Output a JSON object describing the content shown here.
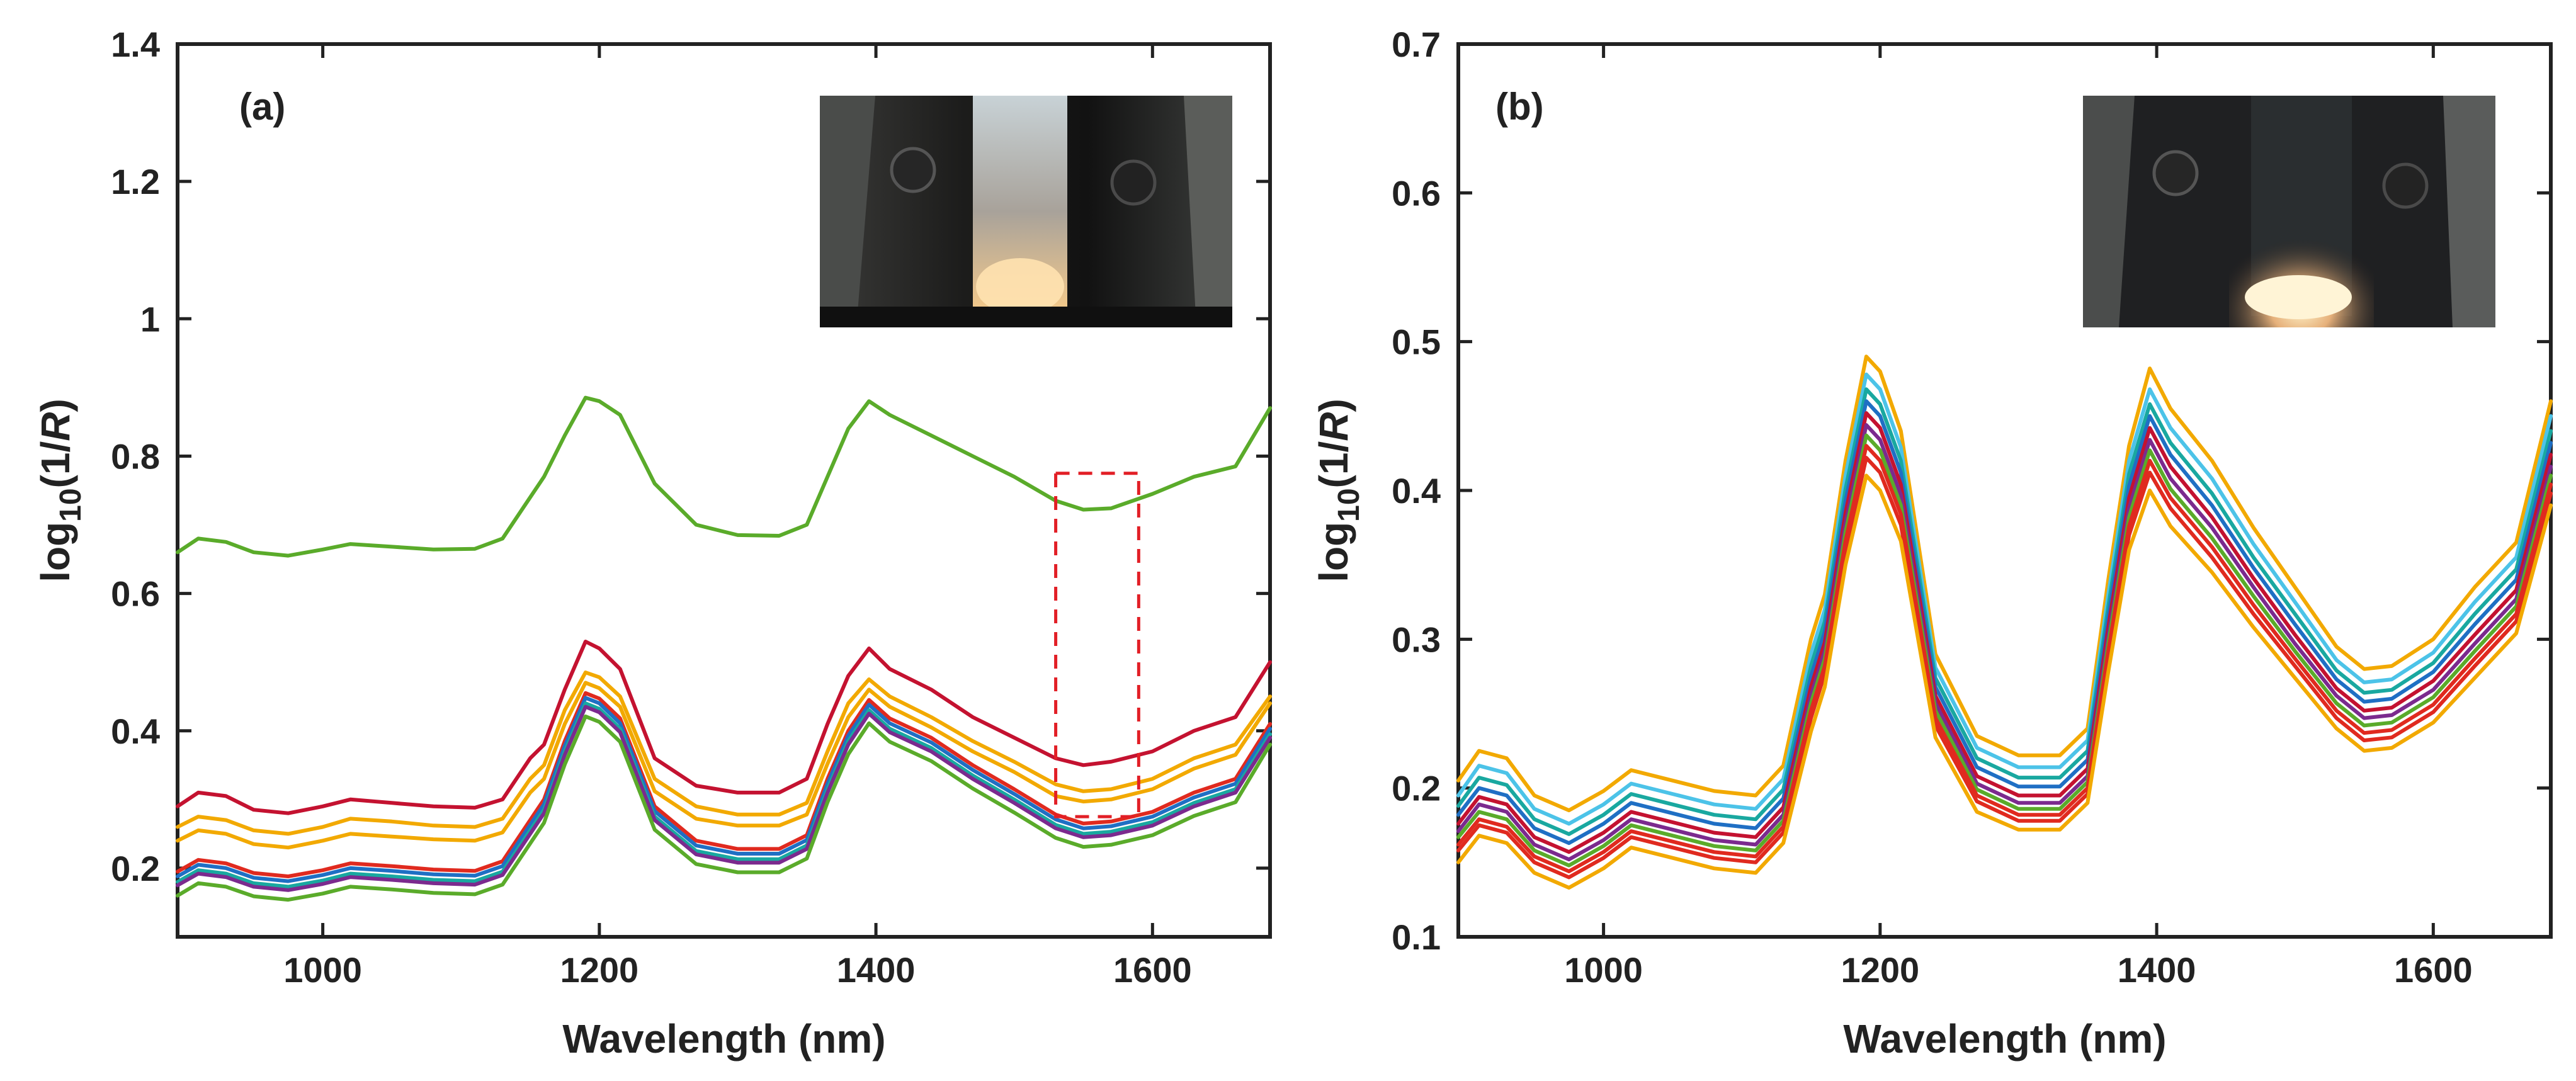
{
  "colors": {
    "green": "#5aab2a",
    "crimson": "#c41230",
    "orange": "#f2a900",
    "red": "#e02a1f",
    "teal": "#19a8a0",
    "blue": "#1f6fc4",
    "purple": "#7b2a8e",
    "cyan": "#4cc3e8",
    "dashed_box": "#e21f26"
  },
  "chart_data": [
    {
      "type": "line",
      "panel_label": "(a)",
      "xlabel": "Wavelength (nm)",
      "ylabel_base": "log",
      "ylabel_sub": "10",
      "ylabel_rest": "(1/",
      "ylabel_italic": "R",
      "ylabel_close": ")",
      "xlim": [
        895,
        1685
      ],
      "ylim": [
        0.1,
        1.4
      ],
      "xticks": [
        1000,
        1200,
        1400,
        1600
      ],
      "xtick_labels": [
        "1000",
        "1200",
        "1400",
        "1600"
      ],
      "yticks": [
        0.2,
        0.4,
        0.6,
        0.8,
        1.0,
        1.2,
        1.4
      ],
      "ytick_labels": [
        "0.2",
        "0.4",
        "0.6",
        "0.8",
        "1",
        "1.2",
        "1.4"
      ],
      "inset": "photo of sample in holder",
      "highlight_box": {
        "x": [
          1530,
          1590
        ],
        "y": [
          0.275,
          0.775
        ],
        "style": "dashed"
      },
      "x": [
        895,
        910,
        930,
        950,
        975,
        1000,
        1020,
        1050,
        1080,
        1110,
        1130,
        1150,
        1160,
        1175,
        1190,
        1200,
        1215,
        1240,
        1270,
        1300,
        1330,
        1350,
        1365,
        1380,
        1395,
        1410,
        1440,
        1470,
        1500,
        1530,
        1550,
        1570,
        1600,
        1630,
        1660,
        1685
      ],
      "series": [
        {
          "name": "green-upper",
          "color": "green",
          "values": [
            0.66,
            0.68,
            0.675,
            0.66,
            0.655,
            0.664,
            0.672,
            0.668,
            0.664,
            0.665,
            0.68,
            0.74,
            0.77,
            0.83,
            0.885,
            0.88,
            0.86,
            0.76,
            0.7,
            0.685,
            0.684,
            0.7,
            0.77,
            0.84,
            0.88,
            0.86,
            0.83,
            0.8,
            0.77,
            0.735,
            0.722,
            0.724,
            0.745,
            0.77,
            0.785,
            0.87
          ]
        },
        {
          "name": "crimson",
          "color": "crimson",
          "values": [
            0.29,
            0.31,
            0.305,
            0.285,
            0.28,
            0.29,
            0.3,
            0.295,
            0.29,
            0.288,
            0.3,
            0.36,
            0.38,
            0.46,
            0.53,
            0.52,
            0.49,
            0.36,
            0.32,
            0.31,
            0.31,
            0.33,
            0.41,
            0.48,
            0.52,
            0.49,
            0.46,
            0.42,
            0.39,
            0.36,
            0.35,
            0.355,
            0.37,
            0.4,
            0.42,
            0.5
          ]
        },
        {
          "name": "orange-1",
          "color": "orange",
          "values": [
            0.26,
            0.275,
            0.27,
            0.255,
            0.25,
            0.26,
            0.272,
            0.268,
            0.262,
            0.26,
            0.272,
            0.33,
            0.35,
            0.43,
            0.485,
            0.478,
            0.45,
            0.33,
            0.29,
            0.278,
            0.278,
            0.295,
            0.37,
            0.44,
            0.475,
            0.45,
            0.42,
            0.385,
            0.355,
            0.322,
            0.312,
            0.315,
            0.33,
            0.36,
            0.38,
            0.45
          ]
        },
        {
          "name": "orange-2",
          "color": "orange",
          "values": [
            0.24,
            0.255,
            0.25,
            0.235,
            0.23,
            0.24,
            0.25,
            0.246,
            0.242,
            0.24,
            0.252,
            0.31,
            0.33,
            0.41,
            0.47,
            0.462,
            0.435,
            0.312,
            0.272,
            0.262,
            0.262,
            0.278,
            0.352,
            0.42,
            0.46,
            0.435,
            0.405,
            0.37,
            0.34,
            0.305,
            0.297,
            0.3,
            0.315,
            0.345,
            0.365,
            0.44
          ]
        },
        {
          "name": "red-1",
          "color": "red",
          "values": [
            0.195,
            0.212,
            0.207,
            0.193,
            0.188,
            0.197,
            0.207,
            0.203,
            0.198,
            0.196,
            0.21,
            0.27,
            0.3,
            0.385,
            0.455,
            0.447,
            0.418,
            0.29,
            0.24,
            0.228,
            0.228,
            0.248,
            0.33,
            0.4,
            0.445,
            0.418,
            0.39,
            0.35,
            0.315,
            0.278,
            0.265,
            0.268,
            0.282,
            0.31,
            0.33,
            0.41
          ]
        },
        {
          "name": "blue-1",
          "color": "blue",
          "values": [
            0.188,
            0.205,
            0.2,
            0.186,
            0.181,
            0.19,
            0.2,
            0.196,
            0.191,
            0.189,
            0.203,
            0.263,
            0.293,
            0.378,
            0.448,
            0.44,
            0.411,
            0.283,
            0.233,
            0.221,
            0.221,
            0.241,
            0.323,
            0.393,
            0.438,
            0.411,
            0.383,
            0.343,
            0.308,
            0.271,
            0.258,
            0.261,
            0.275,
            0.303,
            0.323,
            0.403
          ]
        },
        {
          "name": "teal-1",
          "color": "teal",
          "values": [
            0.18,
            0.197,
            0.192,
            0.178,
            0.173,
            0.182,
            0.192,
            0.188,
            0.183,
            0.181,
            0.195,
            0.255,
            0.285,
            0.37,
            0.44,
            0.432,
            0.403,
            0.275,
            0.225,
            0.213,
            0.213,
            0.233,
            0.315,
            0.385,
            0.43,
            0.403,
            0.375,
            0.335,
            0.3,
            0.263,
            0.25,
            0.253,
            0.267,
            0.295,
            0.315,
            0.395
          ]
        },
        {
          "name": "purple-1",
          "color": "purple",
          "values": [
            0.175,
            0.192,
            0.187,
            0.173,
            0.168,
            0.177,
            0.187,
            0.183,
            0.178,
            0.176,
            0.19,
            0.25,
            0.28,
            0.365,
            0.435,
            0.427,
            0.398,
            0.27,
            0.22,
            0.208,
            0.208,
            0.228,
            0.31,
            0.38,
            0.425,
            0.398,
            0.37,
            0.33,
            0.295,
            0.258,
            0.245,
            0.248,
            0.262,
            0.29,
            0.31,
            0.39
          ]
        },
        {
          "name": "green-lower",
          "color": "green",
          "values": [
            0.16,
            0.178,
            0.173,
            0.159,
            0.154,
            0.163,
            0.173,
            0.169,
            0.164,
            0.162,
            0.176,
            0.236,
            0.266,
            0.351,
            0.421,
            0.413,
            0.384,
            0.256,
            0.206,
            0.194,
            0.194,
            0.214,
            0.296,
            0.366,
            0.411,
            0.384,
            0.356,
            0.316,
            0.281,
            0.244,
            0.231,
            0.234,
            0.248,
            0.276,
            0.296,
            0.38
          ]
        }
      ]
    },
    {
      "type": "line",
      "panel_label": "(b)",
      "xlabel": "Wavelength (nm)",
      "ylabel_base": "log",
      "ylabel_sub": "10",
      "ylabel_rest": "(1/",
      "ylabel_italic": "R",
      "ylabel_close": ")",
      "xlim": [
        895,
        1685
      ],
      "ylim": [
        0.1,
        0.7
      ],
      "xticks": [
        1000,
        1200,
        1400,
        1600
      ],
      "xtick_labels": [
        "1000",
        "1200",
        "1400",
        "1600"
      ],
      "yticks": [
        0.1,
        0.2,
        0.3,
        0.4,
        0.5,
        0.6,
        0.7
      ],
      "ytick_labels": [
        "0.1",
        "0.2",
        "0.3",
        "0.4",
        "0.5",
        "0.6",
        "0.7"
      ],
      "inset": "photo of sample in holder",
      "x": [
        895,
        910,
        930,
        950,
        975,
        1000,
        1020,
        1050,
        1080,
        1110,
        1130,
        1150,
        1160,
        1175,
        1190,
        1200,
        1215,
        1240,
        1270,
        1300,
        1330,
        1350,
        1365,
        1380,
        1395,
        1410,
        1440,
        1470,
        1500,
        1530,
        1550,
        1570,
        1600,
        1630,
        1660,
        1685
      ],
      "series": [
        {
          "name": "orange-top",
          "color": "orange",
          "values": [
            0.205,
            0.225,
            0.22,
            0.195,
            0.185,
            0.198,
            0.212,
            0.205,
            0.198,
            0.195,
            0.215,
            0.3,
            0.33,
            0.42,
            0.49,
            0.48,
            0.44,
            0.29,
            0.235,
            0.222,
            0.222,
            0.24,
            0.34,
            0.43,
            0.482,
            0.455,
            0.42,
            0.375,
            0.335,
            0.295,
            0.28,
            0.282,
            0.3,
            0.335,
            0.365,
            0.46
          ]
        },
        {
          "name": "cyan-1",
          "color": "cyan",
          "values": [
            0.195,
            0.215,
            0.21,
            0.186,
            0.176,
            0.189,
            0.203,
            0.196,
            0.189,
            0.186,
            0.206,
            0.29,
            0.32,
            0.41,
            0.478,
            0.468,
            0.429,
            0.281,
            0.227,
            0.214,
            0.214,
            0.232,
            0.33,
            0.42,
            0.468,
            0.442,
            0.408,
            0.364,
            0.325,
            0.286,
            0.271,
            0.273,
            0.291,
            0.325,
            0.355,
            0.45
          ]
        },
        {
          "name": "teal-1",
          "color": "teal",
          "values": [
            0.188,
            0.207,
            0.202,
            0.179,
            0.169,
            0.182,
            0.196,
            0.189,
            0.182,
            0.179,
            0.199,
            0.282,
            0.312,
            0.401,
            0.468,
            0.458,
            0.42,
            0.274,
            0.22,
            0.207,
            0.207,
            0.225,
            0.322,
            0.411,
            0.458,
            0.432,
            0.398,
            0.355,
            0.317,
            0.279,
            0.264,
            0.266,
            0.284,
            0.317,
            0.347,
            0.44
          ]
        },
        {
          "name": "blue-1",
          "color": "blue",
          "values": [
            0.182,
            0.2,
            0.195,
            0.173,
            0.163,
            0.176,
            0.19,
            0.183,
            0.176,
            0.173,
            0.193,
            0.275,
            0.305,
            0.393,
            0.46,
            0.45,
            0.412,
            0.268,
            0.214,
            0.201,
            0.201,
            0.219,
            0.315,
            0.403,
            0.45,
            0.424,
            0.39,
            0.348,
            0.31,
            0.273,
            0.258,
            0.26,
            0.278,
            0.31,
            0.34,
            0.432
          ]
        },
        {
          "name": "crimson-1",
          "color": "crimson",
          "values": [
            0.176,
            0.194,
            0.189,
            0.167,
            0.157,
            0.17,
            0.184,
            0.177,
            0.17,
            0.167,
            0.187,
            0.268,
            0.298,
            0.385,
            0.452,
            0.442,
            0.404,
            0.262,
            0.208,
            0.195,
            0.195,
            0.213,
            0.308,
            0.395,
            0.442,
            0.416,
            0.382,
            0.341,
            0.303,
            0.267,
            0.252,
            0.254,
            0.272,
            0.303,
            0.333,
            0.424
          ]
        },
        {
          "name": "purple-1",
          "color": "purple",
          "values": [
            0.171,
            0.189,
            0.184,
            0.162,
            0.152,
            0.165,
            0.179,
            0.172,
            0.165,
            0.162,
            0.182,
            0.262,
            0.292,
            0.378,
            0.444,
            0.434,
            0.397,
            0.257,
            0.203,
            0.19,
            0.19,
            0.208,
            0.302,
            0.388,
            0.434,
            0.408,
            0.375,
            0.335,
            0.297,
            0.262,
            0.247,
            0.249,
            0.266,
            0.297,
            0.327,
            0.416
          ]
        },
        {
          "name": "green-1",
          "color": "green",
          "values": [
            0.167,
            0.184,
            0.179,
            0.158,
            0.148,
            0.161,
            0.175,
            0.168,
            0.161,
            0.158,
            0.178,
            0.257,
            0.287,
            0.372,
            0.437,
            0.427,
            0.39,
            0.252,
            0.199,
            0.186,
            0.186,
            0.204,
            0.297,
            0.382,
            0.427,
            0.401,
            0.368,
            0.329,
            0.292,
            0.257,
            0.242,
            0.244,
            0.261,
            0.292,
            0.322,
            0.41
          ]
        },
        {
          "name": "red-1",
          "color": "red",
          "values": [
            0.162,
            0.179,
            0.174,
            0.154,
            0.144,
            0.157,
            0.171,
            0.164,
            0.157,
            0.154,
            0.174,
            0.252,
            0.282,
            0.366,
            0.43,
            0.42,
            0.384,
            0.247,
            0.195,
            0.182,
            0.182,
            0.2,
            0.292,
            0.376,
            0.42,
            0.395,
            0.362,
            0.323,
            0.287,
            0.252,
            0.237,
            0.239,
            0.256,
            0.287,
            0.317,
            0.404
          ]
        },
        {
          "name": "red-2",
          "color": "red",
          "values": [
            0.158,
            0.175,
            0.17,
            0.15,
            0.14,
            0.153,
            0.167,
            0.16,
            0.153,
            0.15,
            0.17,
            0.247,
            0.277,
            0.36,
            0.422,
            0.412,
            0.377,
            0.242,
            0.191,
            0.178,
            0.178,
            0.196,
            0.287,
            0.37,
            0.412,
            0.388,
            0.355,
            0.317,
            0.282,
            0.247,
            0.232,
            0.234,
            0.251,
            0.282,
            0.312,
            0.398
          ]
        },
        {
          "name": "orange-bottom",
          "color": "orange",
          "values": [
            0.15,
            0.168,
            0.163,
            0.143,
            0.133,
            0.146,
            0.16,
            0.153,
            0.146,
            0.143,
            0.163,
            0.238,
            0.268,
            0.35,
            0.41,
            0.4,
            0.366,
            0.234,
            0.184,
            0.172,
            0.172,
            0.19,
            0.278,
            0.36,
            0.4,
            0.376,
            0.345,
            0.308,
            0.274,
            0.24,
            0.225,
            0.227,
            0.244,
            0.274,
            0.304,
            0.39
          ]
        }
      ]
    }
  ]
}
